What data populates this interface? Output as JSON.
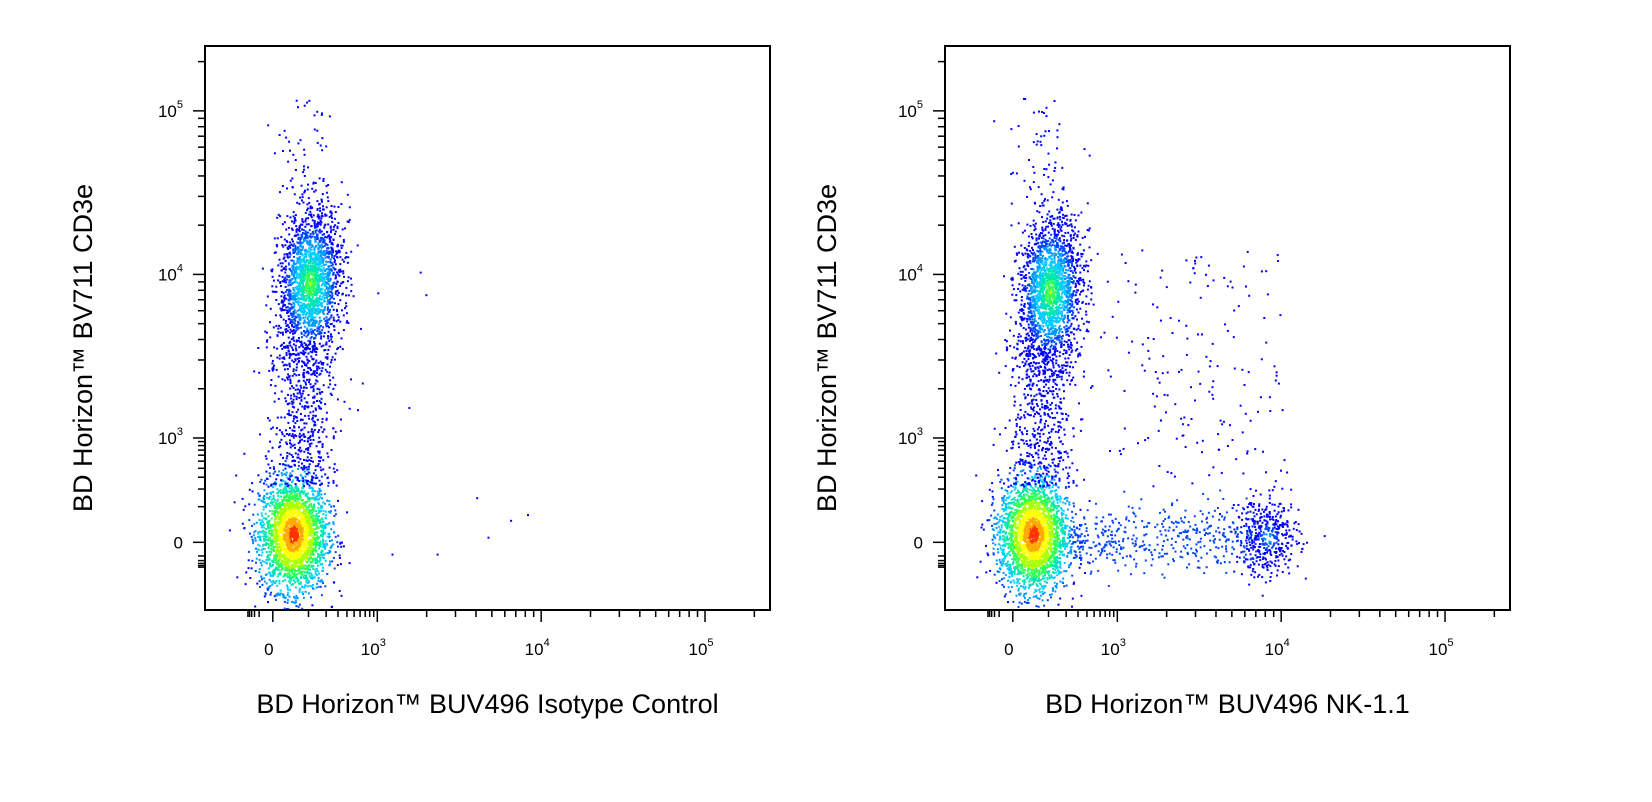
{
  "chart_data": [
    {
      "type": "scatter",
      "subtype": "flow-cytometry-density-dot-plot",
      "xlabel": "BD Horizon™ BUV496 Isotype Control",
      "ylabel": "BD Horizon™ BV711 CD3e",
      "x_scale": "biexponential",
      "y_scale": "biexponential",
      "x_ticks": [
        {
          "value": 0,
          "base": "0",
          "exp": ""
        },
        {
          "value": 1000,
          "base": "10",
          "exp": "3"
        },
        {
          "value": 10000,
          "base": "10",
          "exp": "4"
        },
        {
          "value": 100000,
          "base": "10",
          "exp": "5"
        }
      ],
      "y_ticks": [
        {
          "value": 0,
          "base": "0",
          "exp": ""
        },
        {
          "value": 1000,
          "base": "10",
          "exp": "3"
        },
        {
          "value": 10000,
          "base": "10",
          "exp": "4"
        },
        {
          "value": 100000,
          "base": "10",
          "exp": "5"
        }
      ],
      "populations": [
        {
          "name": "",
          "x_center": 80,
          "y_center": 0,
          "density": "high"
        },
        {
          "name": "",
          "x_center": 200,
          "y_center": 12000,
          "density": "medium"
        }
      ],
      "color_scale": [
        "#0000ff",
        "#00c8ff",
        "#00ff80",
        "#ffff00",
        "#ff0000"
      ],
      "grid": false
    },
    {
      "type": "scatter",
      "subtype": "flow-cytometry-density-dot-plot",
      "xlabel": "BD Horizon™ BUV496 NK-1.1",
      "ylabel": "BD Horizon™ BV711 CD3e",
      "x_scale": "biexponential",
      "y_scale": "biexponential",
      "x_ticks": [
        {
          "value": 0,
          "base": "0",
          "exp": ""
        },
        {
          "value": 1000,
          "base": "10",
          "exp": "3"
        },
        {
          "value": 10000,
          "base": "10",
          "exp": "4"
        },
        {
          "value": 100000,
          "base": "10",
          "exp": "5"
        }
      ],
      "y_ticks": [
        {
          "value": 0,
          "base": "0",
          "exp": ""
        },
        {
          "value": 1000,
          "base": "10",
          "exp": "3"
        },
        {
          "value": 10000,
          "base": "10",
          "exp": "4"
        },
        {
          "value": 100000,
          "base": "10",
          "exp": "5"
        }
      ],
      "populations": [
        {
          "name": "",
          "x_center": 80,
          "y_center": 0,
          "density": "high"
        },
        {
          "name": "",
          "x_center": 200,
          "y_center": 10000,
          "density": "medium"
        },
        {
          "name": "",
          "x_center": 9000,
          "y_center": 0,
          "density": "low"
        }
      ],
      "color_scale": [
        "#0000ff",
        "#00c8ff",
        "#00ff80",
        "#ffff00",
        "#ff0000"
      ],
      "grid": false
    }
  ]
}
